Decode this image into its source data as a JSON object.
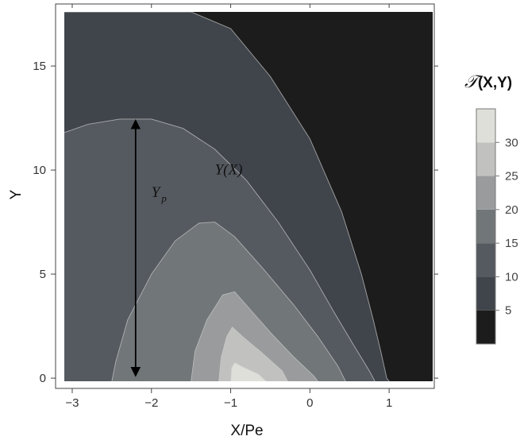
{
  "chart_data": {
    "type": "heatmap",
    "subtype": "filled-contour",
    "xlabel": "X/Pe",
    "ylabel": "Y",
    "xlim": [
      -3.1,
      1.55
    ],
    "ylim": [
      -0.15,
      17.6
    ],
    "x_ticks": [
      -3,
      -2,
      -1,
      0,
      1
    ],
    "x_tick_labels": [
      "−3",
      "−2",
      "−1",
      "0",
      "1"
    ],
    "y_ticks": [
      0,
      5,
      10,
      15
    ],
    "y_tick_labels": [
      "0",
      "5",
      "10",
      "15"
    ],
    "legend": {
      "title_symbol": "𝒯",
      "title_rest": "(X,Y)",
      "placement": "right",
      "levels": [
        0,
        5,
        10,
        15,
        20,
        25,
        30,
        35
      ],
      "tick_labels": [
        "5",
        "10",
        "15",
        "20",
        "25",
        "30"
      ]
    },
    "band_colors": [
      "#1c1c1c",
      "#40444b",
      "#555a60",
      "#717679",
      "#999b9c",
      "#c1c2bf",
      "#dedfd9"
    ],
    "contours": [
      {
        "level": 5,
        "points": [
          [
            -3.1,
            17.6
          ],
          [
            -1.5,
            17.6
          ],
          [
            -1.0,
            16.8
          ],
          [
            -0.5,
            14.5
          ],
          [
            0.0,
            11.5
          ],
          [
            0.4,
            8.0
          ],
          [
            0.65,
            5.0
          ],
          [
            0.8,
            2.8
          ],
          [
            0.9,
            1.2
          ],
          [
            0.97,
            0.0
          ],
          [
            1.0,
            -0.15
          ]
        ]
      },
      {
        "level": 10,
        "points": [
          [
            -3.1,
            11.8
          ],
          [
            -2.8,
            12.2
          ],
          [
            -2.4,
            12.45
          ],
          [
            -2.0,
            12.45
          ],
          [
            -1.6,
            12.0
          ],
          [
            -1.2,
            11.0
          ],
          [
            -0.8,
            9.5
          ],
          [
            -0.4,
            7.5
          ],
          [
            0.0,
            5.2
          ],
          [
            0.3,
            3.2
          ],
          [
            0.55,
            1.6
          ],
          [
            0.75,
            0.35
          ],
          [
            0.82,
            -0.15
          ]
        ]
      },
      {
        "level": 15,
        "points": [
          [
            -2.5,
            -0.15
          ],
          [
            -2.45,
            0.8
          ],
          [
            -2.3,
            2.8
          ],
          [
            -2.0,
            5.0
          ],
          [
            -1.7,
            6.6
          ],
          [
            -1.4,
            7.45
          ],
          [
            -1.2,
            7.5
          ],
          [
            -0.95,
            6.8
          ],
          [
            -0.6,
            5.3
          ],
          [
            -0.2,
            3.5
          ],
          [
            0.1,
            2.0
          ],
          [
            0.35,
            0.6
          ],
          [
            0.45,
            -0.15
          ]
        ]
      },
      {
        "level": 20,
        "points": [
          [
            -1.5,
            -0.15
          ],
          [
            -1.45,
            1.3
          ],
          [
            -1.3,
            2.8
          ],
          [
            -1.1,
            4.0
          ],
          [
            -0.95,
            4.15
          ],
          [
            -0.8,
            3.5
          ],
          [
            -0.5,
            2.2
          ],
          [
            -0.2,
            1.0
          ],
          [
            0.05,
            0.1
          ],
          [
            0.1,
            -0.15
          ]
        ]
      },
      {
        "level": 25,
        "points": [
          [
            -1.15,
            -0.15
          ],
          [
            -1.12,
            1.0
          ],
          [
            -1.05,
            2.0
          ],
          [
            -0.98,
            2.45
          ],
          [
            -0.85,
            2.0
          ],
          [
            -0.6,
            1.2
          ],
          [
            -0.35,
            0.35
          ],
          [
            -0.28,
            -0.15
          ]
        ]
      },
      {
        "level": 30,
        "points": [
          [
            -1.0,
            -0.15
          ],
          [
            -0.99,
            0.5
          ],
          [
            -0.95,
            0.75
          ],
          [
            -0.85,
            0.55
          ],
          [
            -0.65,
            0.2
          ],
          [
            -0.55,
            -0.15
          ]
        ]
      }
    ],
    "annotations": [
      {
        "text": "Y(X)",
        "x": -1.2,
        "y": 9.8
      },
      {
        "text": "Y",
        "sub": "p",
        "x": -2.0,
        "y": 8.7
      }
    ],
    "arrow": {
      "x": -2.2,
      "y_from": 0.15,
      "y_to": 12.35
    }
  }
}
